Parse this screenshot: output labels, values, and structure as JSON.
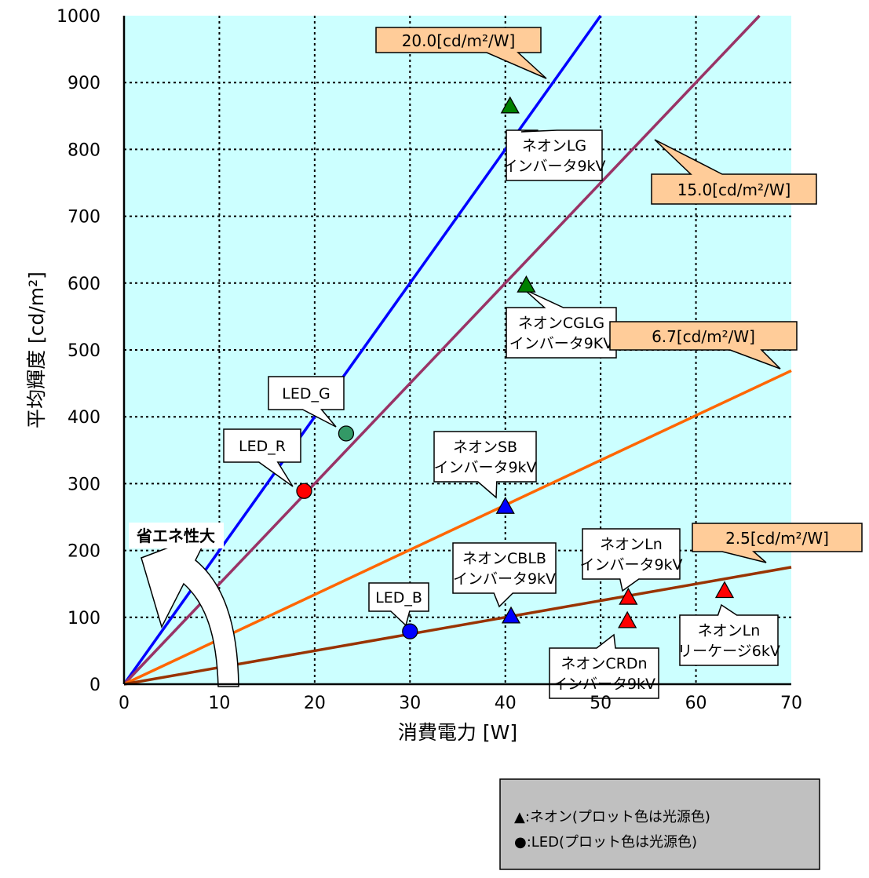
{
  "chart_data": {
    "type": "scatter",
    "xlabel": "消費電力 [W]",
    "ylabel": "平均輝度 [cd/m²]",
    "xlim": [
      0,
      70
    ],
    "ylim": [
      0,
      1000
    ],
    "x_ticks": [
      0,
      10,
      20,
      30,
      40,
      50,
      60,
      70
    ],
    "y_ticks": [
      0,
      100,
      200,
      300,
      400,
      500,
      600,
      700,
      800,
      900,
      1000
    ],
    "grid": true,
    "background_color": "#ccffff",
    "reference_lines": [
      {
        "slope": 20.0,
        "label": "20.0[cd/m²/W]",
        "color": "#0000ff"
      },
      {
        "slope": 15.0,
        "label": "15.0[cd/m²/W]",
        "color": "#993366"
      },
      {
        "slope": 6.7,
        "label": "6.7[cd/m²/W]",
        "color": "#ff6600"
      },
      {
        "slope": 2.5,
        "label": "2.5[cd/m²/W]",
        "color": "#993300"
      }
    ],
    "points": [
      {
        "x": 40.5,
        "y": 865,
        "shape": "triangle",
        "color": "#008000",
        "label": [
          "ネオンLG",
          "インバータ9kV"
        ]
      },
      {
        "x": 42.2,
        "y": 597,
        "shape": "triangle",
        "color": "#008000",
        "label": [
          "ネオンCGLG",
          "インバータ9KV"
        ]
      },
      {
        "x": 40.0,
        "y": 266,
        "shape": "triangle",
        "color": "#0000ff",
        "label": [
          "ネオンSB",
          "インバータ9kV"
        ]
      },
      {
        "x": 40.6,
        "y": 102,
        "shape": "triangle",
        "color": "#0000ff",
        "label": [
          "ネオンCBLB",
          "インバータ9kV"
        ]
      },
      {
        "x": 52.9,
        "y": 130,
        "shape": "triangle",
        "color": "#ff0000",
        "label": [
          "ネオンLn",
          "インバータ9kV"
        ]
      },
      {
        "x": 52.8,
        "y": 95,
        "shape": "triangle",
        "color": "#ff0000",
        "label": [
          "ネオンCRDn",
          "インバータ9kV"
        ]
      },
      {
        "x": 63.0,
        "y": 140,
        "shape": "triangle",
        "color": "#ff0000",
        "label": [
          "ネオンLn",
          "リーケージ6kV"
        ]
      },
      {
        "x": 23.3,
        "y": 375,
        "shape": "circle",
        "color": "#339966",
        "label": [
          "LED_G"
        ]
      },
      {
        "x": 18.9,
        "y": 289,
        "shape": "circle",
        "color": "#ff0000",
        "label": [
          "LED_R"
        ]
      },
      {
        "x": 30.0,
        "y": 79,
        "shape": "circle",
        "color": "#0000ff",
        "label": [
          "LED_B"
        ]
      }
    ],
    "annotation": "省エネ性大",
    "legend": [
      "▲:ネオン(プロット色は光源色)",
      "●:LED(プロット色は光源色)"
    ]
  }
}
